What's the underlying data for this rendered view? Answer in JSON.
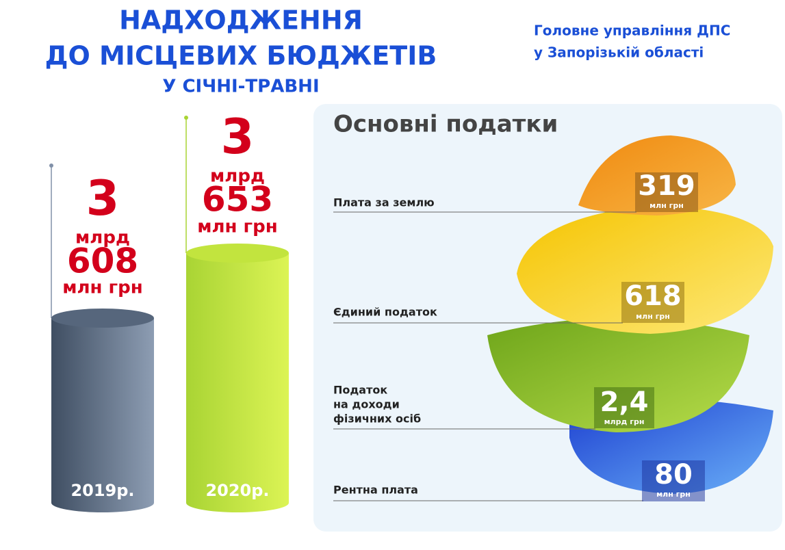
{
  "header": {
    "title_lines": [
      "НАДХОДЖЕННЯ",
      "ДО МІСЦЕВИХ БЮДЖЕТІВ",
      "У СІЧНІ-ТРАВНІ"
    ],
    "organization_lines": [
      "Головне управління ДПС",
      "у Запорізькій області"
    ]
  },
  "years": [
    {
      "label": "2019р.",
      "billions": "3",
      "billions_unit": "млрд",
      "millions": "608",
      "millions_unit": "млн грн"
    },
    {
      "label": "2020р.",
      "billions": "3",
      "billions_unit": "млрд",
      "millions": "653",
      "millions_unit": "млн грн"
    }
  ],
  "taxes": {
    "title": "Основні податки",
    "items": [
      {
        "name_lines": [
          "Плата за землю"
        ],
        "value": "319",
        "unit": "млн грн"
      },
      {
        "name_lines": [
          "Єдиний податок"
        ],
        "value": "618",
        "unit": "млн грн"
      },
      {
        "name_lines": [
          "Податок",
          "на доходи",
          "фізичних осіб"
        ],
        "value": "2,4",
        "unit": "млрд грн"
      },
      {
        "name_lines": [
          "Рентна плата"
        ],
        "value": "80",
        "unit": "млн грн"
      }
    ]
  }
}
